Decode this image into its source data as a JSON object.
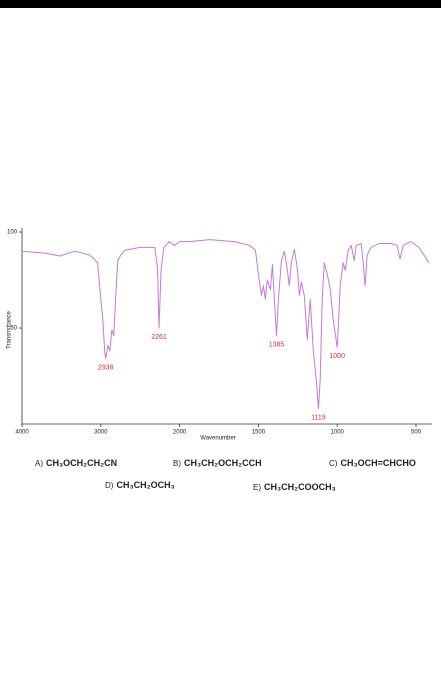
{
  "chart_data": {
    "type": "line",
    "xlabel": "Wavenumber",
    "ylabel": "Transmittance",
    "xlim": [
      4000,
      400
    ],
    "xticks": [
      4000,
      3000,
      2000,
      1500,
      1000,
      500
    ],
    "ylim": [
      0,
      100
    ],
    "yticks": [
      100,
      50
    ],
    "series": [
      {
        "color": "#c47ad6",
        "x": [
          4000,
          3710,
          3520,
          3330,
          3140,
          3040,
          3000,
          2975,
          2950,
          2938,
          2910,
          2885,
          2860,
          2835,
          2810,
          2785,
          2745,
          2695,
          2505,
          2315,
          2280,
          2261,
          2235,
          2200,
          2130,
          2065,
          2000,
          1937,
          1810,
          1652,
          1557,
          1519,
          1500,
          1481,
          1468,
          1456,
          1443,
          1424,
          1411,
          1399,
          1385,
          1373,
          1354,
          1335,
          1316,
          1304,
          1291,
          1272,
          1253,
          1240,
          1228,
          1209,
          1190,
          1171,
          1152,
          1133,
          1119,
          1108,
          1095,
          1082,
          1063,
          1044,
          1025,
          1000,
          994,
          981,
          962,
          949,
          930,
          911,
          892,
          880,
          848,
          835,
          823,
          810,
          785,
          734,
          658,
          620,
          601,
          582,
          532,
          481,
          418
        ],
        "values": [
          90,
          89,
          87.5,
          90,
          88,
          84,
          65,
          55,
          37.5,
          34,
          41,
          38,
          49,
          46,
          67,
          85,
          88,
          90.5,
          92,
          92,
          81,
          50,
          80,
          92,
          95,
          93,
          95,
          95,
          96,
          95,
          93,
          90.5,
          78,
          67,
          72,
          65,
          75,
          70,
          83,
          65,
          46,
          65,
          85,
          90,
          80,
          72,
          84,
          91,
          81,
          67,
          74,
          67,
          44,
          65,
          38.5,
          23,
          8,
          23,
          65,
          84,
          78,
          70,
          54,
          40,
          49,
          72,
          84,
          80,
          90.5,
          93,
          85,
          93,
          94,
          84,
          72,
          88,
          92,
          94,
          94,
          93,
          86,
          93,
          95,
          92,
          84
        ]
      }
    ],
    "annotations": [
      {
        "text": "2938",
        "x": 2938,
        "y": 34
      },
      {
        "text": "2261",
        "x": 2261,
        "y": 50
      },
      {
        "text": "1385",
        "x": 1385,
        "y": 46
      },
      {
        "text": "1119",
        "x": 1119,
        "y": 8
      },
      {
        "text": "1000",
        "x": 1000,
        "y": 40
      }
    ],
    "annotation_color": "#d0343a"
  },
  "choices": [
    {
      "letter": "A)",
      "formula": "CH₃OCH₂CH₂CN"
    },
    {
      "letter": "B)",
      "formula": "CH₃CH₂OCH₂CCH"
    },
    {
      "letter": "C)",
      "formula": "CH₃OCH=CHCHO"
    },
    {
      "letter": "D)",
      "formula": "CH₃CH₂OCH₃"
    },
    {
      "letter": "E)",
      "formula": "CH₃CH₂COOCH₃"
    }
  ]
}
